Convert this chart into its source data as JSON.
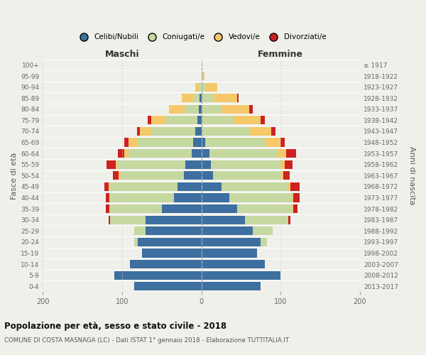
{
  "age_groups": [
    "0-4",
    "5-9",
    "10-14",
    "15-19",
    "20-24",
    "25-29",
    "30-34",
    "35-39",
    "40-44",
    "45-49",
    "50-54",
    "55-59",
    "60-64",
    "65-69",
    "70-74",
    "75-79",
    "80-84",
    "85-89",
    "90-94",
    "95-99",
    "100+"
  ],
  "birth_years": [
    "2013-2017",
    "2008-2012",
    "2003-2007",
    "1998-2002",
    "1993-1997",
    "1988-1992",
    "1983-1987",
    "1978-1982",
    "1973-1977",
    "1968-1972",
    "1963-1967",
    "1958-1962",
    "1953-1957",
    "1948-1952",
    "1943-1947",
    "1938-1942",
    "1933-1937",
    "1928-1932",
    "1923-1927",
    "1918-1922",
    "≤ 1917"
  ],
  "colors": {
    "celibi": "#3d6fa0",
    "coniugati": "#c5d8a0",
    "vedovi": "#f5c96a",
    "divorziati": "#cc2222"
  },
  "males": {
    "celibi": [
      85,
      110,
      90,
      75,
      80,
      70,
      70,
      50,
      35,
      30,
      22,
      20,
      12,
      10,
      8,
      5,
      3,
      2,
      0,
      0,
      0
    ],
    "coniugati": [
      0,
      0,
      0,
      0,
      5,
      15,
      45,
      65,
      80,
      85,
      80,
      85,
      80,
      70,
      55,
      40,
      18,
      8,
      3,
      0,
      0
    ],
    "vedovi": [
      0,
      0,
      0,
      0,
      0,
      0,
      0,
      1,
      1,
      2,
      2,
      3,
      5,
      12,
      15,
      18,
      20,
      15,
      5,
      0,
      0
    ],
    "divorziati": [
      0,
      0,
      0,
      0,
      0,
      0,
      2,
      5,
      5,
      5,
      8,
      12,
      8,
      5,
      3,
      5,
      0,
      0,
      0,
      0,
      0
    ]
  },
  "females": {
    "celibi": [
      75,
      100,
      80,
      70,
      75,
      65,
      55,
      45,
      35,
      25,
      15,
      12,
      10,
      5,
      0,
      0,
      0,
      0,
      0,
      0,
      0
    ],
    "coniugati": [
      0,
      0,
      0,
      0,
      8,
      25,
      55,
      70,
      80,
      85,
      85,
      88,
      85,
      75,
      60,
      40,
      25,
      15,
      5,
      2,
      0
    ],
    "vedovi": [
      0,
      0,
      0,
      0,
      0,
      0,
      0,
      1,
      1,
      2,
      3,
      5,
      12,
      20,
      28,
      35,
      35,
      30,
      15,
      2,
      0
    ],
    "divorziati": [
      0,
      0,
      0,
      0,
      0,
      0,
      2,
      5,
      8,
      12,
      8,
      10,
      12,
      5,
      5,
      5,
      5,
      2,
      0,
      0,
      0
    ]
  },
  "title": "Popolazione per età, sesso e stato civile - 2018",
  "subtitle": "COMUNE DI COSTA MASNAGA (LC) - Dati ISTAT 1° gennaio 2018 - Elaborazione TUTTITALIA.IT",
  "ylabel_left": "Fasce di età",
  "ylabel_right": "Anni di nascita",
  "xlabel_left": "Maschi",
  "xlabel_right": "Femmine",
  "xlim": 200,
  "legend_labels": [
    "Celibi/Nubili",
    "Coniugati/e",
    "Vedovi/e",
    "Divorziati/e"
  ],
  "background_color": "#f0f0eb"
}
